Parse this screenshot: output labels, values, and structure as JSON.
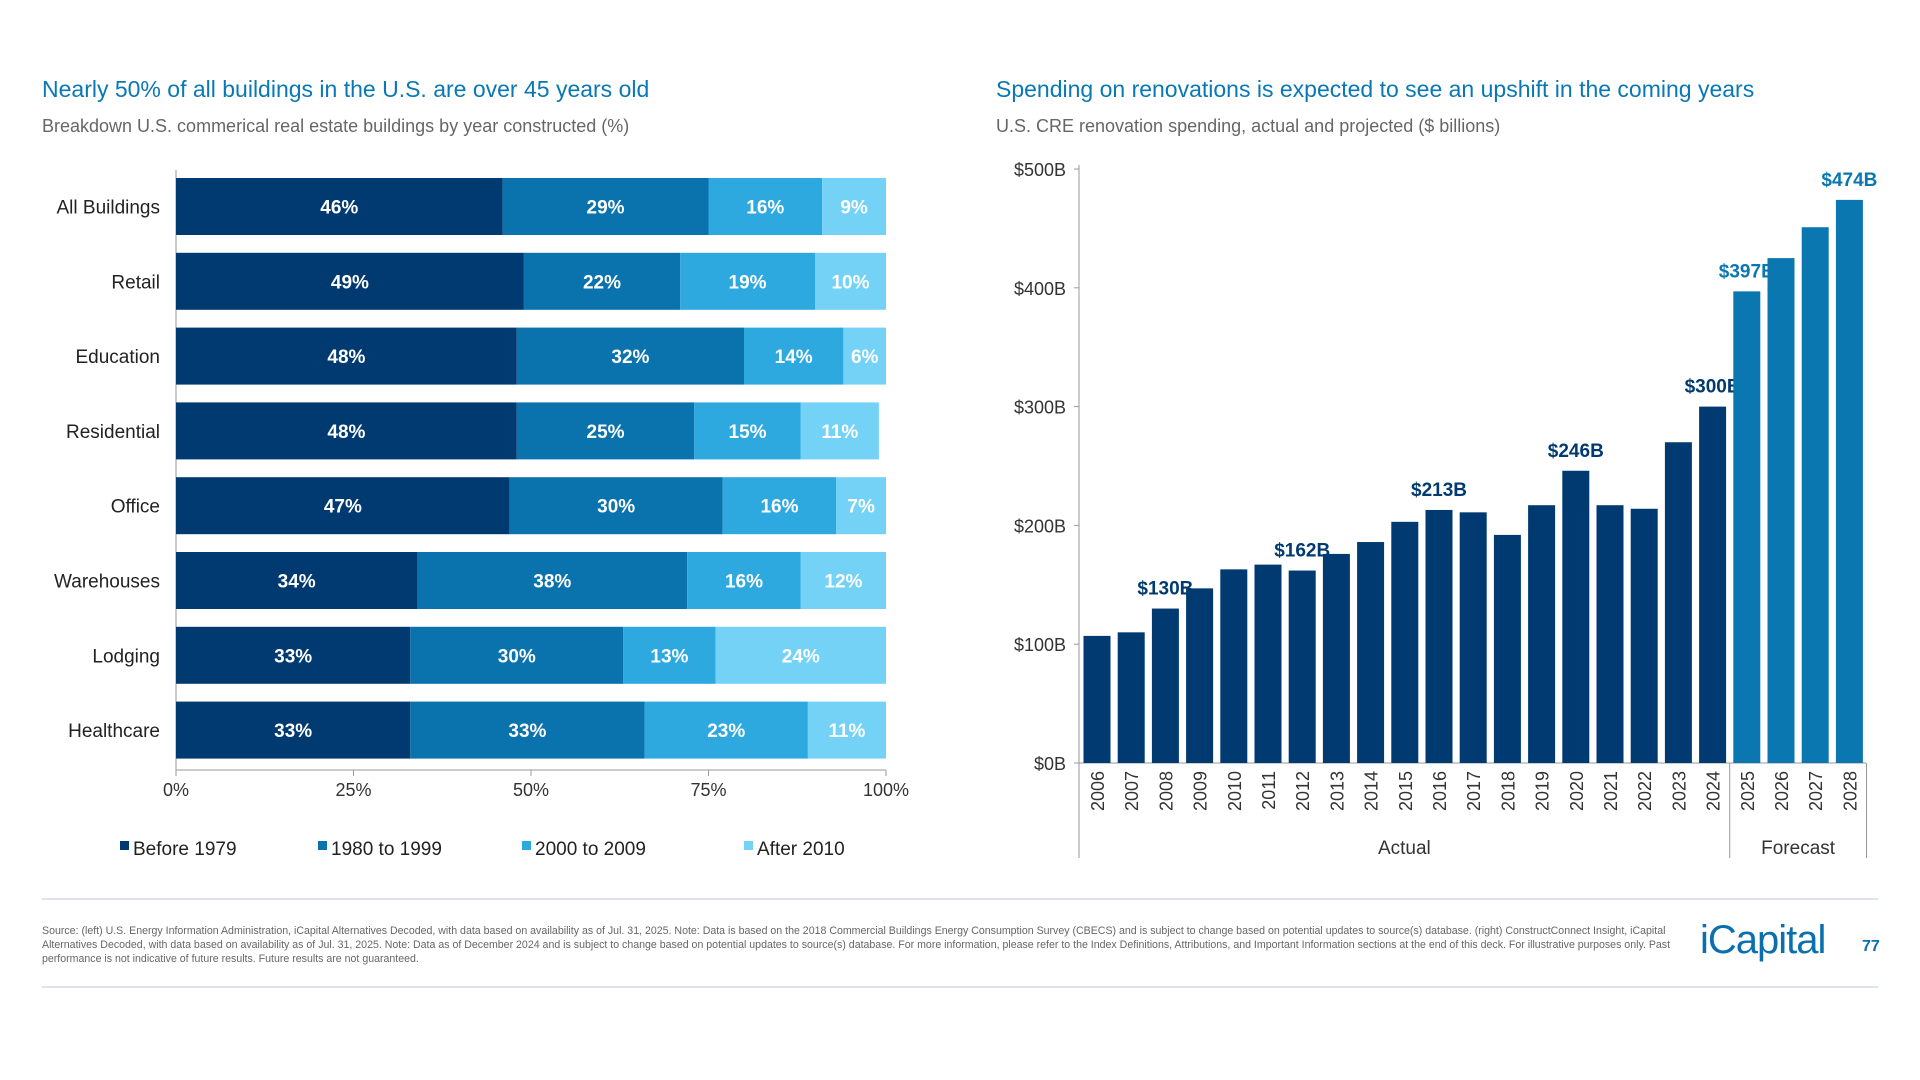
{
  "chart_data": [
    {
      "type": "bar",
      "orientation": "horizontal",
      "stacked": true,
      "title": "Nearly 50% of all buildings in the U.S. are over 45 years old",
      "subtitle": "Breakdown U.S. commerical real estate buildings by year constructed (%)",
      "categories": [
        "All Buildings",
        "Retail",
        "Education",
        "Residential",
        "Office",
        "Warehouses",
        "Lodging",
        "Healthcare"
      ],
      "series": [
        {
          "name": "Before 1979",
          "color": "#003a70",
          "values": [
            46,
            49,
            48,
            48,
            47,
            34,
            33,
            33
          ]
        },
        {
          "name": "1980 to 1999",
          "color": "#0a72ad",
          "values": [
            29,
            22,
            32,
            25,
            30,
            38,
            30,
            33
          ]
        },
        {
          "name": "2000 to 2009",
          "color": "#2ea9e0",
          "values": [
            16,
            19,
            14,
            15,
            16,
            16,
            13,
            23
          ]
        },
        {
          "name": "After 2010",
          "color": "#74d2f7",
          "values": [
            9,
            10,
            6,
            11,
            7,
            12,
            24,
            11
          ]
        }
      ],
      "xlim": [
        0,
        100
      ],
      "xticks": [
        "0%",
        "25%",
        "50%",
        "75%",
        "100%"
      ],
      "legend": "bottom",
      "data_label_suffix": "%"
    },
    {
      "type": "bar",
      "title": "Spending on renovations is expected to see an upshift in the coming years",
      "subtitle": "U.S. CRE renovation spending, actual and projected ($ billions)",
      "categories": [
        "2006",
        "2007",
        "2008",
        "2009",
        "2010",
        "2011",
        "2012",
        "2013",
        "2014",
        "2015",
        "2016",
        "2017",
        "2018",
        "2019",
        "2020",
        "2021",
        "2022",
        "2023",
        "2024",
        "2025",
        "2026",
        "2027",
        "2028"
      ],
      "values": [
        107,
        110,
        130,
        147,
        163,
        167,
        162,
        176,
        186,
        203,
        213,
        211,
        192,
        217,
        246,
        217,
        214,
        270,
        300,
        397,
        425,
        451,
        474
      ],
      "data_labels": {
        "2008": "$130B",
        "2012": "$162B",
        "2016": "$213B",
        "2020": "$246B",
        "2024": "$300B",
        "2025": "$397B",
        "2028": "$474B"
      },
      "groups": [
        {
          "label": "Actual",
          "from": "2006",
          "to": "2024",
          "color": "#003a70"
        },
        {
          "label": "Forecast",
          "from": "2025",
          "to": "2028",
          "color": "#0a77b0"
        }
      ],
      "ylim": [
        0,
        500
      ],
      "yticks": [
        "$0B",
        "$100B",
        "$200B",
        "$300B",
        "$400B",
        "$500B"
      ]
    }
  ],
  "footer": {
    "source": "Source: (left) U.S. Energy Information Administration, iCapital Alternatives Decoded, with data based on availability as of Jul. 31, 2025. Note: Data is based on the 2018 Commercial Buildings Energy Consumption Survey (CBECS) and is subject to change based on potential updates to source(s) database. (right) ConstructConnect Insight, iCapital Alternatives Decoded, with data based on availability as of Jul. 31, 2025. Note: Data as of December 2024 and is subject to change based on potential updates to source(s) database. For more information, please refer to the Index Definitions, Attributions, and Important Information sections at the end of this deck. For illustrative purposes only. Past performance is not indicative of future results. Future results are not guaranteed.",
    "logo": "iCapital",
    "page_number": "77"
  }
}
